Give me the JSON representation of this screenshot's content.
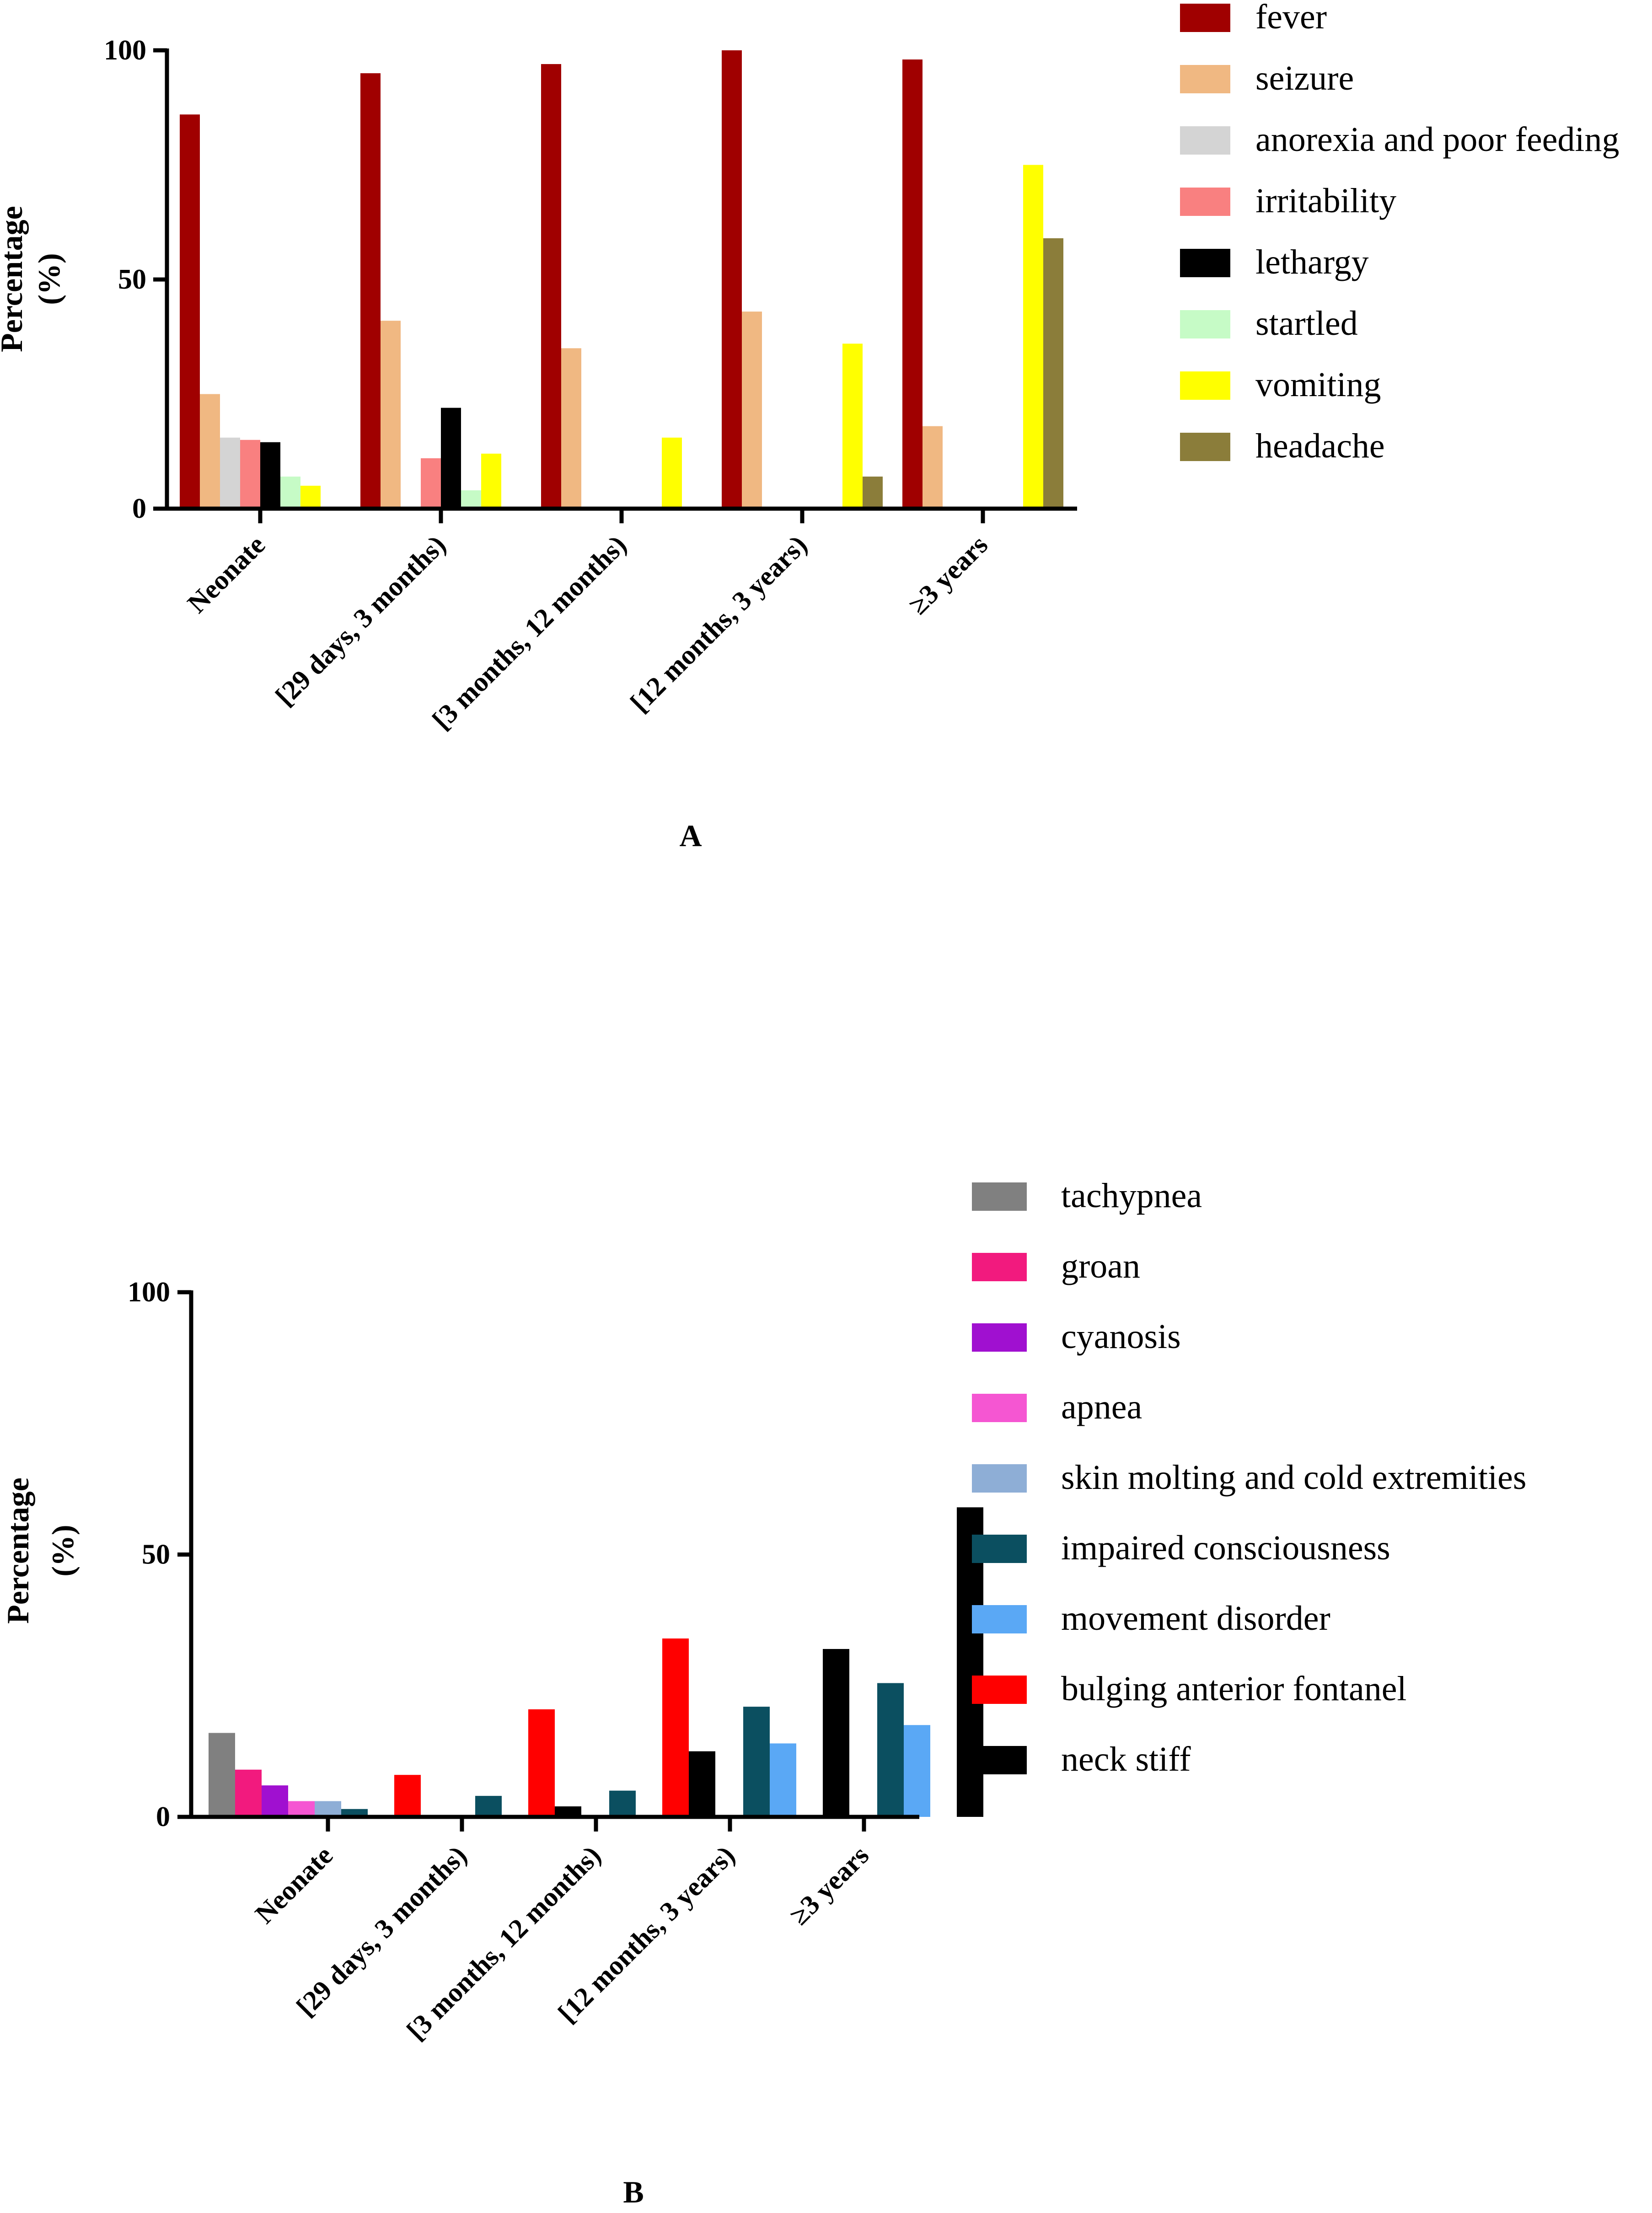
{
  "chart_data": [
    {
      "panel": "A",
      "type": "bar",
      "ylabel_line1": "Percentage",
      "ylabel_line2": "(%)",
      "ylim": [
        0,
        100
      ],
      "yticks": [
        "0",
        "50",
        "100"
      ],
      "categories": [
        "Neonate",
        "[29 days, 3 months)",
        "[3 months, 12 months)",
        "[12 months, 3 years)",
        "≥3 years"
      ],
      "series": [
        {
          "name": "fever",
          "color": "#A00000",
          "values": [
            86,
            95,
            97,
            100,
            98
          ]
        },
        {
          "name": "seizure",
          "color": "#F0B882",
          "values": [
            25,
            41,
            35,
            43,
            18
          ]
        },
        {
          "name": "anorexia and poor feeding",
          "color": "#D4D4D4",
          "values": [
            15.5,
            0,
            0,
            0,
            0
          ]
        },
        {
          "name": "irritability",
          "color": "#F98080",
          "values": [
            15,
            11,
            0,
            0,
            0
          ]
        },
        {
          "name": "lethargy",
          "color": "#000000",
          "values": [
            14.5,
            22,
            0,
            0,
            0
          ]
        },
        {
          "name": "startled",
          "color": "#C6FBC6",
          "values": [
            7,
            4,
            0,
            0,
            0
          ]
        },
        {
          "name": "vomiting",
          "color": "#FFFF00",
          "values": [
            5,
            12,
            15.5,
            36,
            75
          ]
        },
        {
          "name": "headache",
          "color": "#8B7D3A",
          "values": [
            0,
            0,
            0,
            7,
            59
          ]
        }
      ]
    },
    {
      "panel": "B",
      "type": "bar",
      "ylabel_line1": "Percentage",
      "ylabel_line2": "(%)",
      "ylim": [
        0,
        100
      ],
      "yticks": [
        "0",
        "50",
        "100"
      ],
      "categories": [
        "Neonate",
        "[29 days, 3 months)",
        "[3 months, 12 months)",
        "[12 months, 3 years)",
        "≥3 years"
      ],
      "series": [
        {
          "name": "tachypnea",
          "color": "#808080",
          "values": [
            16,
            0,
            0,
            0,
            0
          ]
        },
        {
          "name": "groan",
          "color": "#F21A7E",
          "values": [
            9,
            0,
            0,
            0,
            0
          ]
        },
        {
          "name": "cyanosis",
          "color": "#A010D0",
          "values": [
            6,
            0,
            0,
            0,
            0
          ]
        },
        {
          "name": "apnea",
          "color": "#F556D2",
          "values": [
            3,
            0,
            0,
            0,
            0
          ]
        },
        {
          "name": "skin molting and cold extremities",
          "color": "#8EAED6",
          "values": [
            3,
            0,
            0,
            0,
            0
          ]
        },
        {
          "name": "impaired consciousness",
          "color": "#0B4F60",
          "values": [
            1.5,
            4,
            5,
            21,
            25.5
          ]
        },
        {
          "name": "movement disorder",
          "color": "#5AA8F5",
          "values": [
            0,
            0,
            0,
            14,
            17.5
          ]
        },
        {
          "name": "bulging anterior fontanel",
          "color": "#FF0000",
          "values": [
            8,
            20.5,
            34,
            0,
            0
          ]
        },
        {
          "name": "neck stiff",
          "color": "#000000",
          "values": [
            0,
            2,
            12.5,
            32,
            59
          ]
        }
      ]
    }
  ]
}
